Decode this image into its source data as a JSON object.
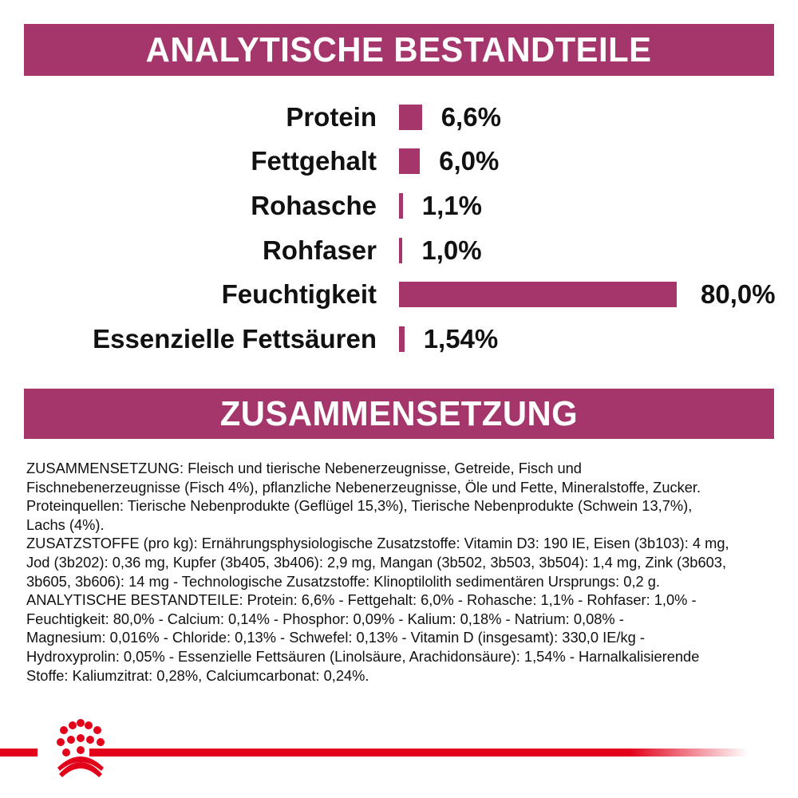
{
  "header_analytics": "ANALYTISCHE BESTANDTEILE",
  "header_composition": "ZUSAMMENSETZUNG",
  "colors": {
    "accent": "#a5366b",
    "brand_red": "#e2001a"
  },
  "chart_data": {
    "type": "bar",
    "orientation": "horizontal",
    "categories": [
      "Protein",
      "Fettgehalt",
      "Rohasche",
      "Rohfaser",
      "Feuchtigkeit",
      "Essenzielle Fettsäuren"
    ],
    "values": [
      6.6,
      6.0,
      1.1,
      1.0,
      80.0,
      1.54
    ],
    "data_labels": [
      "6,6%",
      "6,0%",
      "1,1%",
      "1,0%",
      "80,0%",
      "1,54%"
    ],
    "unit": "%",
    "grid": false
  },
  "composition_lines": [
    "ZUSAMMENSETZUNG: Fleisch und tierische Nebenerzeugnisse, Getreide, Fisch und",
    "Fischnebenerzeugnisse (Fisch 4%), pflanzliche Nebenerzeugnisse, Öle und Fette, Mineralstoffe, Zucker.",
    "Proteinquellen: Tierische Nebenprodukte (Geflügel 15,3%), Tierische Nebenprodukte (Schwein 13,7%),",
    "Lachs (4%).",
    "ZUSATZSTOFFE (pro kg): Ernährungsphysiologische Zusatzstoffe: Vitamin D3: 190 IE, Eisen (3b103): 4 mg,",
    "Jod (3b202): 0,36 mg, Kupfer (3b405, 3b406): 2,9 mg, Mangan (3b502, 3b503, 3b504): 1,4 mg, Zink (3b603,",
    "3b605, 3b606): 14 mg - Technologische Zusatzstoffe: Klinoptilolith sedimentären Ursprungs: 0,2 g.",
    "ANALYTISCHE BESTANDTEILE: Protein: 6,6% - Fettgehalt: 6,0% - Rohasche: 1,1% - Rohfaser: 1,0% -",
    "Feuchtigkeit: 80,0% - Calcium: 0,14% - Phosphor: 0,09% - Kalium: 0,18% - Natrium: 0,08% -",
    "Magnesium: 0,016% - Chloride: 0,13% - Schwefel: 0,13% - Vitamin D (insgesamt): 330,0 IE/kg -",
    "Hydroxyprolin: 0,05% - Essenzielle Fettsäuren (Linolsäure, Arachidonsäure): 1,54% - Harnalkalisierende",
    "Stoffe: Kaliumzitrat: 0,28%, Calciumcarbonat: 0,24%."
  ],
  "logo": {
    "name": "crown-logo"
  }
}
